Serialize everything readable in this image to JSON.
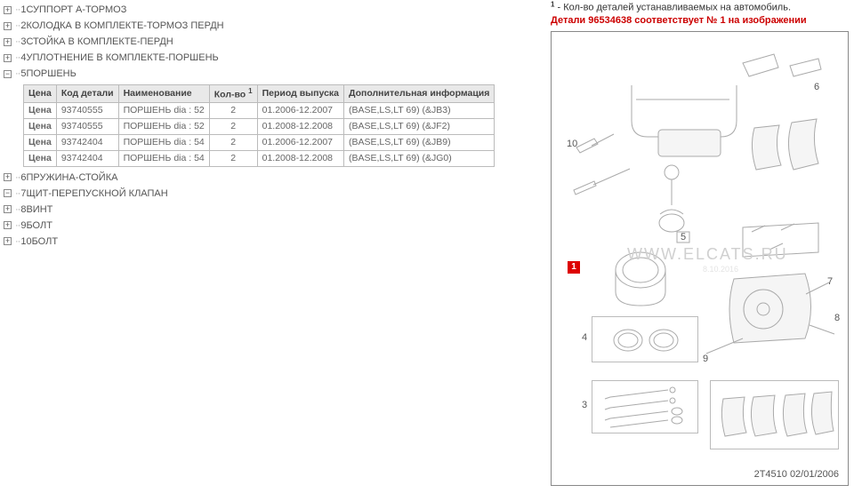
{
  "tree": {
    "items": [
      {
        "sign": "+",
        "dots": "··",
        "num": "1",
        "label": "СУППОРТ А-ТОРМОЗ"
      },
      {
        "sign": "+",
        "dots": "··",
        "num": "2",
        "label": "КОЛОДКА В КОМПЛЕКТЕ-ТОРМОЗ ПЕРДН"
      },
      {
        "sign": "+",
        "dots": "··",
        "num": "3",
        "label": "СТОЙКА В КОМПЛЕКТЕ-ПЕРДН"
      },
      {
        "sign": "+",
        "dots": "··",
        "num": "4",
        "label": "УПЛОТНЕНИЕ В КОМПЛЕКТЕ-ПОРШЕНЬ"
      },
      {
        "sign": "−",
        "dots": "··",
        "num": "5",
        "label": "ПОРШЕНЬ"
      },
      {
        "sign": "+",
        "dots": "··",
        "num": "6",
        "label": "ПРУЖИНА-СТОЙКА"
      },
      {
        "sign": "−",
        "dots": "··",
        "num": "7",
        "label": "ЩИТ-ПЕРЕПУСКНОЙ КЛАПАН"
      },
      {
        "sign": "+",
        "dots": "··",
        "num": "8",
        "label": "ВИНТ"
      },
      {
        "sign": "+",
        "dots": "··",
        "num": "9",
        "label": "БОЛТ"
      },
      {
        "sign": "+",
        "dots": "··",
        "num": "10",
        "label": "БОЛТ"
      }
    ]
  },
  "table": {
    "headers": [
      "Цена",
      "Код детали",
      "Наименование",
      "Кол-во",
      "Период выпуска",
      "Дополнительная информация"
    ],
    "header_sup": "1",
    "rows": [
      {
        "price": "Цена",
        "code": "93740555",
        "name": "ПОРШЕНЬ dia : 52",
        "qty": "2",
        "period": "01.2006-12.2007",
        "info": "(BASE,LS,LT 69) (&JB3)"
      },
      {
        "price": "Цена",
        "code": "93740555",
        "name": "ПОРШЕНЬ dia : 52",
        "qty": "2",
        "period": "01.2008-12.2008",
        "info": "(BASE,LS,LT 69) (&JF2)"
      },
      {
        "price": "Цена",
        "code": "93742404",
        "name": "ПОРШЕНЬ dia : 54",
        "qty": "2",
        "period": "01.2006-12.2007",
        "info": "(BASE,LS,LT 69) (&JB9)"
      },
      {
        "price": "Цена",
        "code": "93742404",
        "name": "ПОРШЕНЬ dia : 54",
        "qty": "2",
        "period": "01.2008-12.2008",
        "info": "(BASE,LS,LT 69) (&JG0)"
      }
    ]
  },
  "notes": {
    "line1_prefix": "1",
    "line1_text": " - Кол-во деталей устанавливаемых на автомобиль.",
    "line2": "Детали 96534638 соответствует № 1 на изображении"
  },
  "diagram": {
    "watermark": "WWW.ELCATS.RU",
    "watermark_date": "8.10.2016",
    "footer": "2T4510   02/01/2006",
    "callouts": {
      "c1": "1",
      "c3": "3",
      "c4": "4",
      "c5": "5",
      "c6": "6",
      "c7": "7",
      "c8": "8",
      "c9": "9",
      "c10": "10"
    }
  }
}
